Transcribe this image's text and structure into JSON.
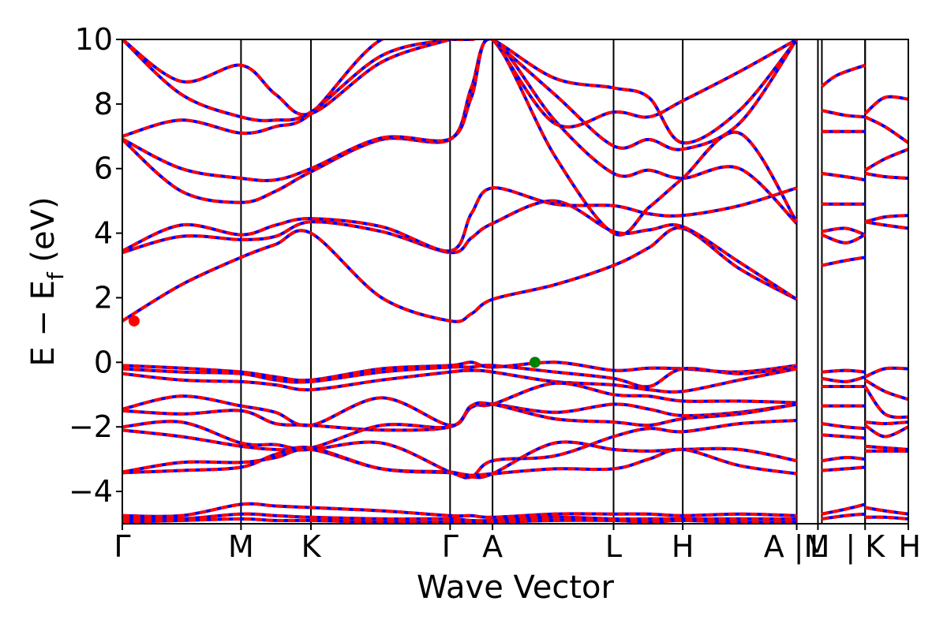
{
  "chart_data": {
    "type": "line",
    "title": "",
    "xlabel": "Wave Vector",
    "ylabel_main": "E − E",
    "ylabel_sub": "f",
    "ylabel_unit": " (eV)",
    "ylim": [
      -5,
      10
    ],
    "yticks": [
      10,
      8,
      6,
      4,
      2,
      0,
      -2,
      -4
    ],
    "ytick_labels": [
      "10",
      "8",
      "6",
      "4",
      "2",
      "0",
      "−2",
      "−4"
    ],
    "xlim": [
      0,
      10
    ],
    "x_ticks": [
      {
        "pos": 0.0,
        "label": "Γ"
      },
      {
        "pos": 1.51,
        "label": "M"
      },
      {
        "pos": 2.4,
        "label": "K"
      },
      {
        "pos": 4.17,
        "label": "Γ"
      },
      {
        "pos": 4.71,
        "label": "A"
      },
      {
        "pos": 6.25,
        "label": "L"
      },
      {
        "pos": 7.13,
        "label": "H"
      },
      {
        "pos": 8.58,
        "label": "A |M"
      },
      {
        "pos": 8.85,
        "label": "L"
      },
      {
        "pos": 9.45,
        "label": "| K"
      },
      {
        "pos": 10.0,
        "label": "H"
      }
    ],
    "path_breaks": [
      8.9,
      9.45
    ],
    "segment_labels": [
      "Γ-M",
      "M-K",
      "K-Γ",
      "Γ-A",
      "A-L",
      "L-H",
      "H-A",
      "M-L",
      "K-H"
    ],
    "style": {
      "band_color": "#0000ff",
      "overlay_color": "#ff0000",
      "vbm_color": "#008000",
      "cbm_color": "#ff0000"
    },
    "markers": [
      {
        "name": "CBM",
        "x": 0.15,
        "y": 1.28,
        "color": "#ff0000"
      },
      {
        "name": "VBM",
        "x": 5.25,
        "y": 0.0,
        "color": "#008000"
      }
    ],
    "series": [
      {
        "x": [
          0,
          0.75,
          1.51,
          1.95,
          2.4,
          3.3,
          4.17,
          4.44,
          4.71,
          5.5,
          6.25,
          6.7,
          7.13,
          7.85,
          8.58
        ],
        "y": [
          1.28,
          2.4,
          3.25,
          3.65,
          4.0,
          2.0,
          1.28,
          1.5,
          1.95,
          2.4,
          3.0,
          3.55,
          4.15,
          2.9,
          1.95
        ]
      },
      {
        "x": [
          0,
          0.75,
          1.51,
          1.95,
          2.4,
          3.3,
          4.17,
          4.44,
          4.71,
          5.5,
          6.25,
          6.7,
          7.13,
          7.85,
          8.58
        ],
        "y": [
          3.4,
          3.9,
          3.8,
          3.9,
          4.35,
          4.05,
          3.4,
          3.85,
          4.3,
          5.0,
          4.05,
          4.1,
          4.2,
          3.1,
          1.95
        ]
      },
      {
        "x": [
          0,
          0.75,
          1.51,
          1.95,
          2.4,
          3.3,
          4.17,
          4.44,
          4.71,
          5.5,
          6.25,
          6.7,
          7.13,
          7.85,
          8.58
        ],
        "y": [
          3.45,
          4.25,
          3.95,
          4.25,
          4.45,
          4.2,
          3.45,
          4.6,
          5.4,
          4.9,
          4.85,
          4.6,
          4.55,
          4.85,
          5.4
        ]
      },
      {
        "x": [
          0,
          0.75,
          1.51,
          1.95,
          2.4,
          3.3,
          4.17,
          4.44,
          4.71,
          5.5,
          6.25,
          6.7,
          7.13,
          7.85,
          8.58
        ],
        "y": [
          6.9,
          5.3,
          4.95,
          5.3,
          5.9,
          6.9,
          6.9,
          8.5,
          10,
          7.5,
          5.85,
          5.95,
          5.7,
          6.0,
          4.3
        ]
      },
      {
        "x": [
          0,
          0.75,
          1.51,
          1.95,
          2.4,
          3.3,
          4.17,
          4.44,
          4.71,
          5.5,
          6.25,
          6.7,
          7.13,
          7.85,
          8.58
        ],
        "y": [
          6.92,
          6.0,
          5.7,
          5.65,
          6.0,
          6.95,
          6.92,
          8.2,
          10,
          6.4,
          4.0,
          4.8,
          5.7,
          7.1,
          4.35
        ]
      },
      {
        "x": [
          0,
          0.75,
          1.51,
          1.95,
          2.4,
          3.3,
          4.17,
          4.44,
          4.71,
          5.5,
          6.25,
          6.7,
          7.13,
          7.85,
          8.58
        ],
        "y": [
          7.0,
          7.5,
          7.1,
          7.3,
          7.7,
          10,
          10,
          10,
          10,
          7.4,
          7.75,
          7.6,
          8.1,
          9.0,
          10
        ]
      },
      {
        "x": [
          0,
          0.75,
          1.51,
          1.95,
          2.4,
          3.3,
          4.17,
          4.44,
          4.71,
          5.5,
          6.25,
          6.7,
          7.13,
          7.85,
          8.58
        ],
        "y": [
          10,
          8.3,
          7.6,
          7.5,
          7.75,
          9.5,
          10,
          10,
          10,
          8.8,
          8.5,
          8.2,
          6.8,
          7.8,
          10
        ]
      },
      {
        "x": [
          0,
          0.75,
          1.51,
          1.95,
          2.4,
          3.3,
          4.17
        ],
        "y": [
          10,
          8.7,
          9.2,
          8.3,
          7.7,
          9.3,
          10
        ]
      },
      {
        "x": [
          4.71,
          5.5,
          6.25,
          6.7,
          7.13,
          7.85,
          8.58
        ],
        "y": [
          10,
          8.3,
          6.7,
          6.9,
          6.6,
          7.4,
          10
        ]
      },
      {
        "x": [
          0,
          0.75,
          1.51,
          1.95,
          2.4,
          3.3,
          4.17,
          4.44,
          4.71,
          5.5,
          6.25,
          6.7,
          7.13,
          7.85,
          8.58
        ],
        "y": [
          -0.1,
          -0.18,
          -0.3,
          -0.45,
          -0.55,
          -0.2,
          -0.1,
          0.0,
          -0.15,
          0.0,
          -0.25,
          -0.18,
          -0.2,
          -0.3,
          -0.1
        ]
      },
      {
        "x": [
          0,
          0.75,
          1.51,
          1.95,
          2.4,
          3.3,
          4.17,
          4.44,
          4.71,
          5.5,
          6.25,
          6.7,
          7.13,
          7.85,
          8.58
        ],
        "y": [
          -0.2,
          -0.3,
          -0.35,
          -0.55,
          -0.6,
          -0.3,
          -0.15,
          -0.15,
          -0.1,
          -0.3,
          -0.5,
          -0.75,
          -0.2,
          -0.35,
          -0.15
        ]
      },
      {
        "x": [
          0,
          0.75,
          1.51,
          1.95,
          2.4,
          3.3,
          4.17,
          4.44,
          4.71,
          5.5,
          6.25,
          6.7,
          7.13,
          7.85,
          8.58
        ],
        "y": [
          -0.35,
          -0.55,
          -0.6,
          -0.7,
          -0.85,
          -0.55,
          -0.3,
          -0.25,
          -0.3,
          -0.6,
          -0.7,
          -0.85,
          -0.9,
          -0.55,
          -0.2
        ]
      },
      {
        "x": [
          0,
          0.75,
          1.51,
          1.95,
          2.4,
          3.3,
          4.17,
          4.44,
          4.71,
          5.5,
          6.25,
          6.7,
          7.13,
          7.85,
          8.58
        ],
        "y": [
          -1.45,
          -1.05,
          -1.35,
          -1.55,
          -1.95,
          -1.1,
          -1.95,
          -1.35,
          -1.3,
          -0.65,
          -1.0,
          -1.05,
          -1.2,
          -1.2,
          -1.25
        ]
      },
      {
        "x": [
          0,
          0.75,
          1.51,
          1.95,
          2.4,
          3.3,
          4.17,
          4.44,
          4.71,
          5.5,
          6.25,
          6.7,
          7.13,
          7.85,
          8.58
        ],
        "y": [
          -1.5,
          -1.6,
          -1.5,
          -1.9,
          -1.95,
          -2.1,
          -2.0,
          -1.4,
          -1.3,
          -1.55,
          -1.3,
          -1.45,
          -1.65,
          -1.55,
          -1.3
        ]
      },
      {
        "x": [
          0,
          0.75,
          1.51,
          1.95,
          2.4,
          3.3,
          4.17,
          4.44,
          4.71,
          5.5,
          6.25,
          6.7,
          7.13,
          7.85,
          8.58
        ],
        "y": [
          -2.0,
          -1.85,
          -2.5,
          -2.55,
          -2.65,
          -1.95,
          -2.0,
          -1.35,
          -1.3,
          -1.75,
          -1.85,
          -1.95,
          -1.75,
          -1.6,
          -1.3
        ]
      },
      {
        "x": [
          0,
          0.75,
          1.51,
          1.95,
          2.4,
          3.3,
          4.17,
          4.44,
          4.71,
          5.5,
          6.25,
          6.7,
          7.13,
          7.85,
          8.58
        ],
        "y": [
          -2.1,
          -2.3,
          -2.6,
          -2.7,
          -2.7,
          -2.5,
          -3.4,
          -3.55,
          -3.05,
          -2.9,
          -2.3,
          -2.05,
          -2.15,
          -1.9,
          -1.8
        ]
      },
      {
        "x": [
          0,
          0.75,
          1.51,
          1.95,
          2.4,
          3.3,
          4.17,
          4.44,
          4.71,
          5.5,
          6.25,
          6.7,
          7.13,
          7.85,
          8.58
        ],
        "y": [
          -3.4,
          -3.1,
          -3.1,
          -2.95,
          -2.7,
          -3.3,
          -3.4,
          -3.55,
          -3.45,
          -2.5,
          -2.7,
          -2.75,
          -2.7,
          -2.7,
          -3.05
        ]
      },
      {
        "x": [
          0,
          0.75,
          1.51,
          1.95,
          2.4,
          3.3,
          4.17,
          4.44,
          4.71,
          5.5,
          6.25,
          6.7,
          7.13,
          7.85,
          8.58
        ],
        "y": [
          -3.42,
          -3.35,
          -3.25,
          -2.85,
          -2.65,
          -3.3,
          -3.42,
          -3.5,
          -3.45,
          -3.3,
          -3.3,
          -3.0,
          -2.7,
          -3.2,
          -3.45
        ]
      },
      {
        "x": [
          0,
          0.75,
          1.51,
          1.95,
          2.4,
          3.3,
          4.17,
          4.44,
          4.71,
          5.5,
          6.25,
          6.7,
          7.13,
          7.85,
          8.58
        ],
        "y": [
          -4.75,
          -4.75,
          -4.4,
          -4.45,
          -4.5,
          -4.6,
          -4.75,
          -4.75,
          -4.8,
          -4.7,
          -4.7,
          -4.7,
          -4.75,
          -4.7,
          -4.75
        ]
      },
      {
        "x": [
          0,
          0.75,
          1.51,
          1.95,
          2.4,
          3.3,
          4.17,
          4.44,
          4.71,
          5.5,
          6.25,
          6.7,
          7.13,
          7.85,
          8.58
        ],
        "y": [
          -4.85,
          -4.85,
          -4.7,
          -4.75,
          -4.8,
          -4.85,
          -4.85,
          -4.9,
          -4.9,
          -4.8,
          -4.85,
          -4.85,
          -4.85,
          -4.85,
          -4.85
        ]
      },
      {
        "x": [
          0,
          0.75,
          1.51,
          1.95,
          2.4,
          3.3,
          4.17,
          4.44,
          4.71,
          5.5,
          6.25,
          6.7,
          7.13,
          7.85,
          8.58
        ],
        "y": [
          -4.95,
          -4.9,
          -4.85,
          -4.9,
          -4.9,
          -4.95,
          -4.95,
          -4.95,
          -4.95,
          -4.9,
          -4.9,
          -4.95,
          -4.9,
          -4.95,
          -4.95
        ]
      },
      {
        "x": [
          8.9,
          9.1,
          9.45
        ],
        "y": [
          8.55,
          8.9,
          9.2
        ]
      },
      {
        "x": [
          8.9,
          9.2,
          9.45
        ],
        "y": [
          7.8,
          7.65,
          7.6
        ]
      },
      {
        "x": [
          8.9,
          9.2,
          9.45
        ],
        "y": [
          7.15,
          7.15,
          7.15
        ]
      },
      {
        "x": [
          8.9,
          9.2,
          9.45
        ],
        "y": [
          5.85,
          5.75,
          5.65
        ]
      },
      {
        "x": [
          8.9,
          9.2,
          9.45
        ],
        "y": [
          4.9,
          4.9,
          4.9
        ]
      },
      {
        "x": [
          8.9,
          9.2,
          9.45
        ],
        "y": [
          4.05,
          4.15,
          3.95
        ]
      },
      {
        "x": [
          8.9,
          9.2,
          9.45
        ],
        "y": [
          3.95,
          3.7,
          3.95
        ]
      },
      {
        "x": [
          8.9,
          9.2,
          9.45
        ],
        "y": [
          3.0,
          3.15,
          3.25
        ]
      },
      {
        "x": [
          8.9,
          9.2,
          9.45
        ],
        "y": [
          -0.3,
          -0.25,
          -0.3
        ]
      },
      {
        "x": [
          8.9,
          9.2,
          9.45
        ],
        "y": [
          -0.5,
          -0.6,
          -0.45
        ]
      },
      {
        "x": [
          8.9,
          9.2,
          9.45
        ],
        "y": [
          -0.75,
          -0.75,
          -0.75
        ]
      },
      {
        "x": [
          8.9,
          9.2,
          9.45
        ],
        "y": [
          -1.35,
          -1.35,
          -1.35
        ]
      },
      {
        "x": [
          8.9,
          9.2,
          9.45
        ],
        "y": [
          -1.9,
          -2.0,
          -2.05
        ]
      },
      {
        "x": [
          8.9,
          9.2,
          9.45
        ],
        "y": [
          -2.25,
          -2.3,
          -2.35
        ]
      },
      {
        "x": [
          8.9,
          9.2,
          9.45
        ],
        "y": [
          -3.05,
          -2.95,
          -3.0
        ]
      },
      {
        "x": [
          8.9,
          9.2,
          9.45
        ],
        "y": [
          -3.35,
          -3.3,
          -3.25
        ]
      },
      {
        "x": [
          8.9,
          9.2,
          9.45
        ],
        "y": [
          -4.7,
          -4.55,
          -4.4
        ]
      },
      {
        "x": [
          8.9,
          9.2,
          9.45
        ],
        "y": [
          -4.85,
          -4.75,
          -4.7
        ]
      },
      {
        "x": [
          9.45,
          9.7,
          10.0
        ],
        "y": [
          7.7,
          8.2,
          8.15
        ]
      },
      {
        "x": [
          9.45,
          9.7,
          10.0
        ],
        "y": [
          7.6,
          7.3,
          6.8
        ]
      },
      {
        "x": [
          9.45,
          9.7,
          10.0
        ],
        "y": [
          5.95,
          6.3,
          6.6
        ]
      },
      {
        "x": [
          9.45,
          9.7,
          10.0
        ],
        "y": [
          5.85,
          5.75,
          5.7
        ]
      },
      {
        "x": [
          9.45,
          9.7,
          10.0
        ],
        "y": [
          4.35,
          4.5,
          4.55
        ]
      },
      {
        "x": [
          9.45,
          9.7,
          10.0
        ],
        "y": [
          4.35,
          4.25,
          4.15
        ]
      },
      {
        "x": [
          9.45,
          9.7,
          10.0
        ],
        "y": [
          -0.45,
          -0.2,
          -0.2
        ]
      },
      {
        "x": [
          9.45,
          9.7,
          10.0
        ],
        "y": [
          -0.55,
          -0.9,
          -1.15
        ]
      },
      {
        "x": [
          9.45,
          9.7,
          10.0
        ],
        "y": [
          -0.75,
          -1.6,
          -1.7
        ]
      },
      {
        "x": [
          9.45,
          9.7,
          10.0
        ],
        "y": [
          -1.85,
          -1.9,
          -1.85
        ]
      },
      {
        "x": [
          9.45,
          9.7,
          10.0
        ],
        "y": [
          -1.95,
          -2.3,
          -2.0
        ]
      },
      {
        "x": [
          9.45,
          9.7,
          10.0
        ],
        "y": [
          -2.6,
          -2.65,
          -2.7
        ]
      },
      {
        "x": [
          9.45,
          9.7,
          10.0
        ],
        "y": [
          -2.75,
          -2.75,
          -2.75
        ]
      },
      {
        "x": [
          9.45,
          9.7,
          10.0
        ],
        "y": [
          -4.5,
          -4.6,
          -4.7
        ]
      },
      {
        "x": [
          9.45,
          9.7,
          10.0
        ],
        "y": [
          -4.8,
          -4.8,
          -4.85
        ]
      }
    ]
  }
}
